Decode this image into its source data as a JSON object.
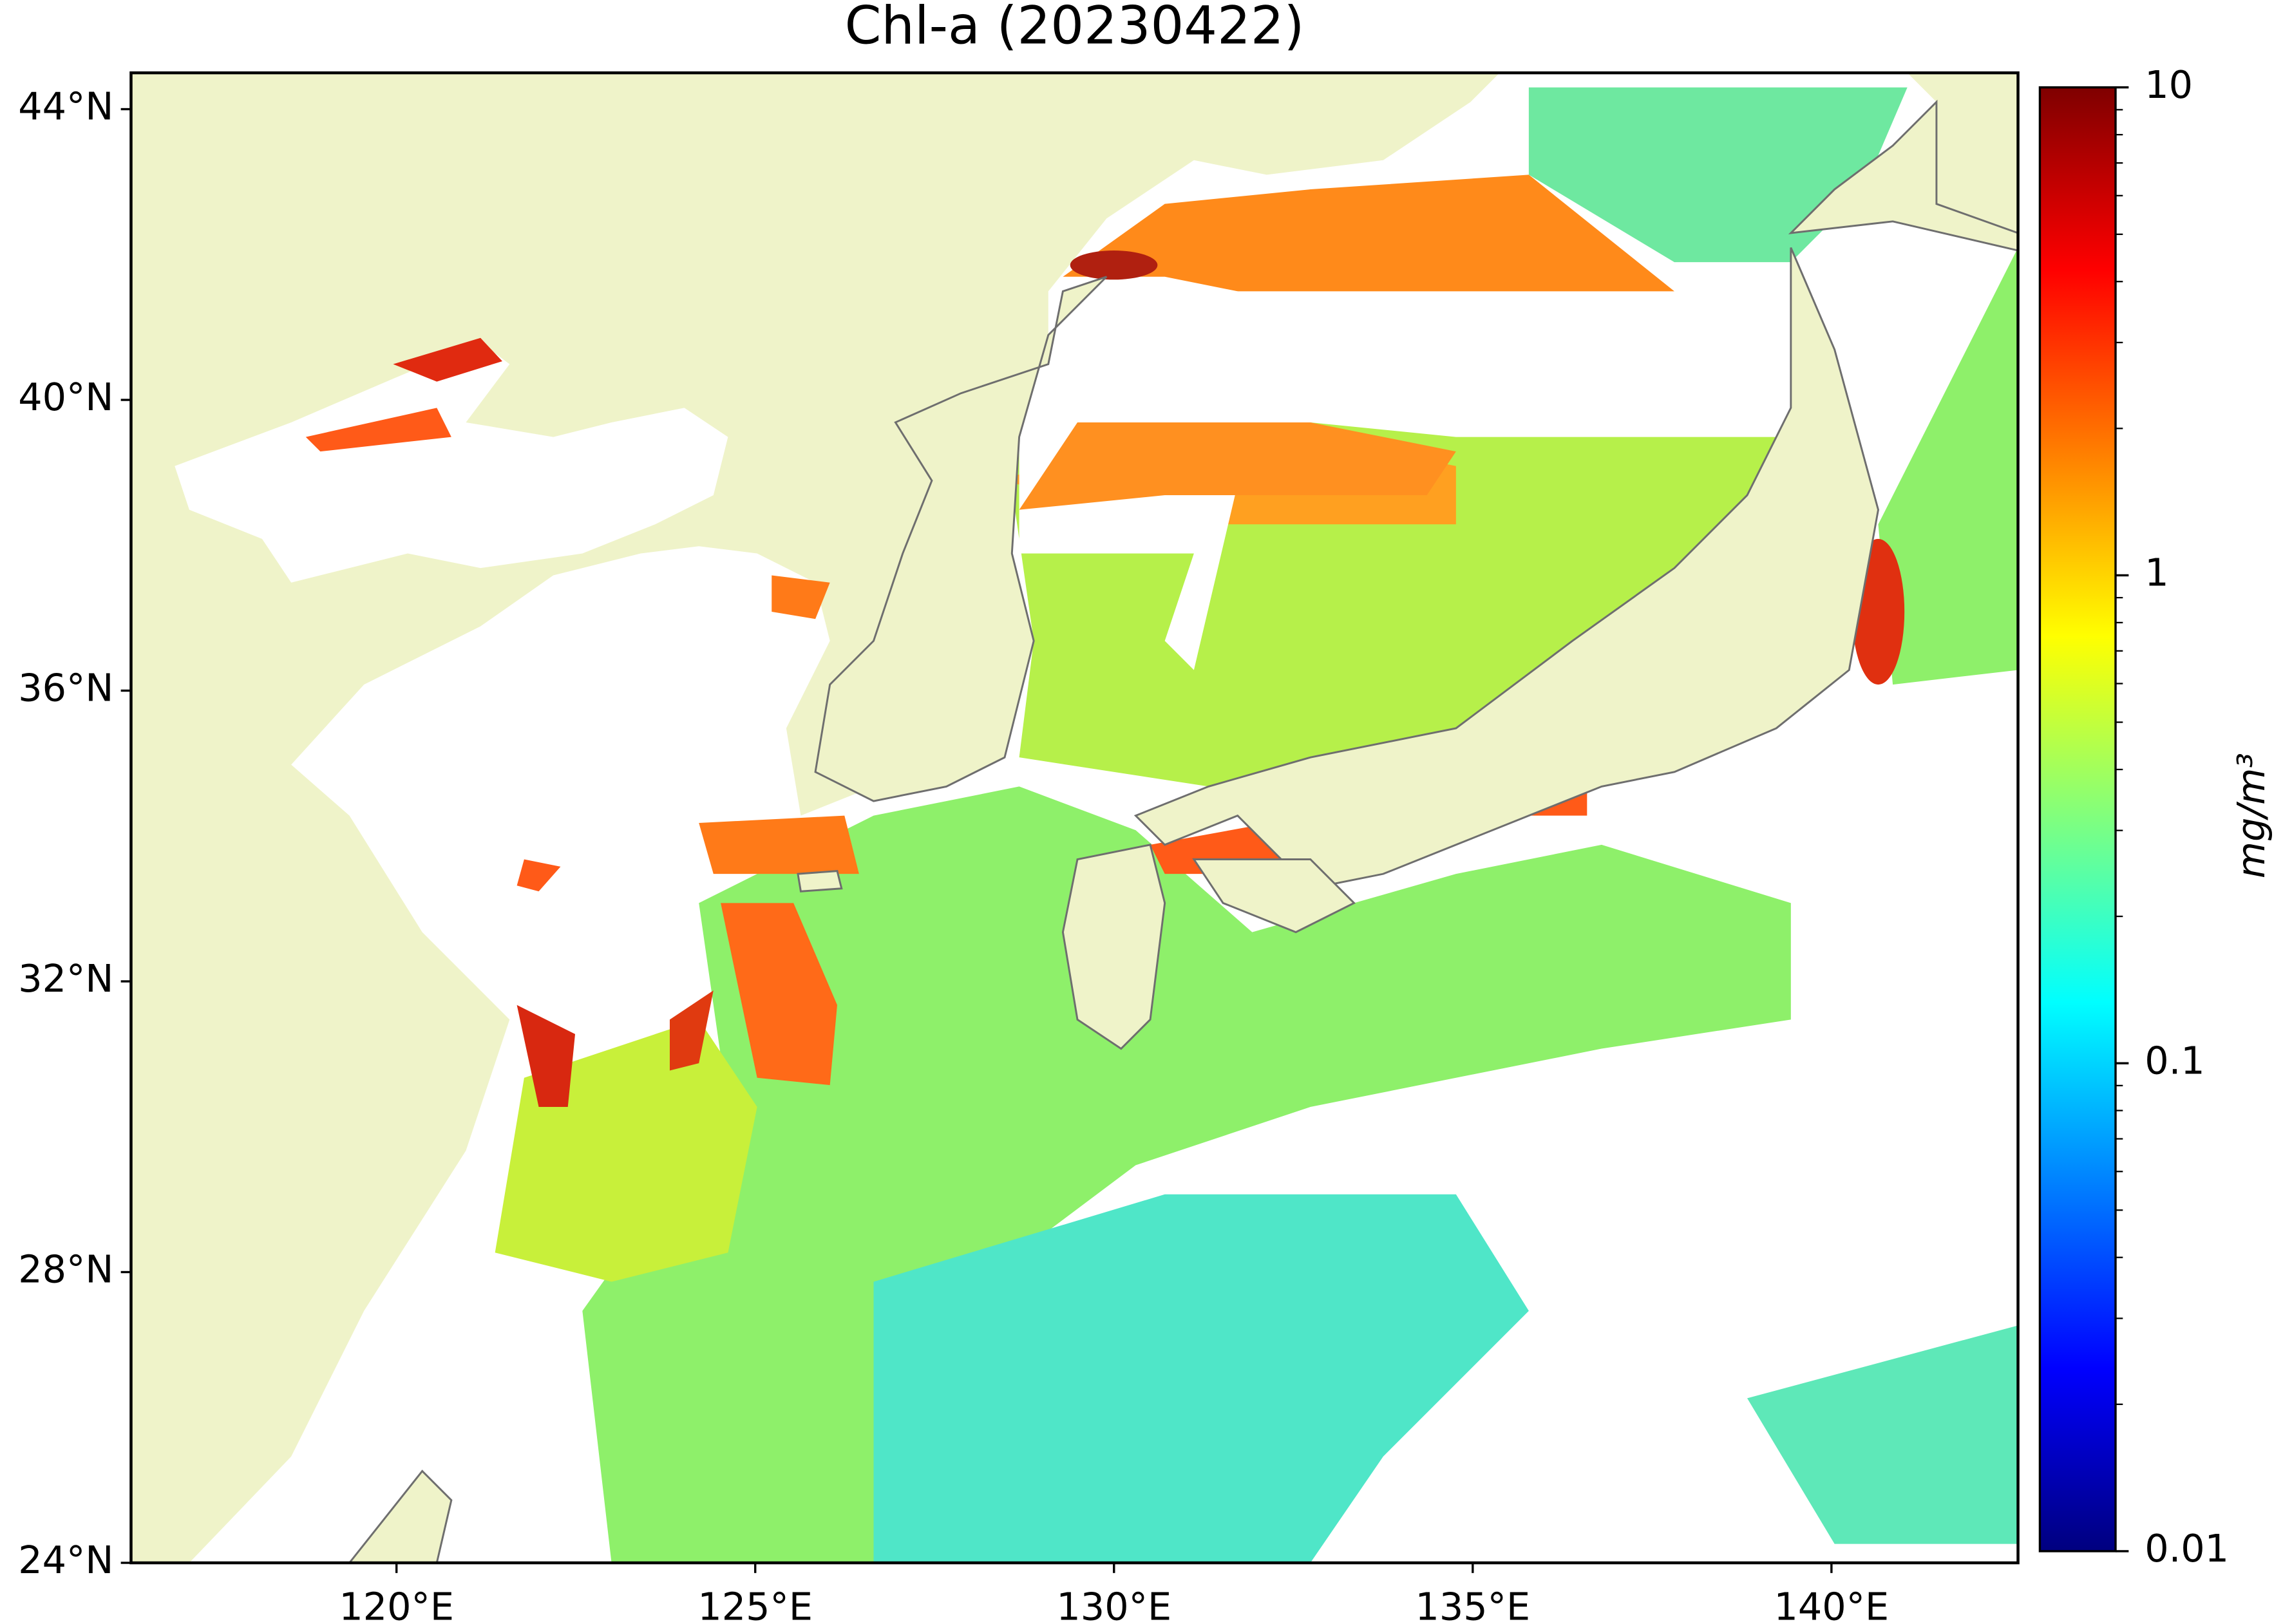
{
  "chart_data": {
    "type": "map",
    "title": "Chl-a (20230422)",
    "xlim": [
      116.3,
      142.6
    ],
    "ylim": [
      24,
      44.5
    ],
    "xticks": [
      {
        "value": 120,
        "label": "120°E"
      },
      {
        "value": 125,
        "label": "125°E"
      },
      {
        "value": 130,
        "label": "130°E"
      },
      {
        "value": 135,
        "label": "135°E"
      },
      {
        "value": 140,
        "label": "140°E"
      }
    ],
    "yticks": [
      {
        "value": 24,
        "label": "24°N"
      },
      {
        "value": 28,
        "label": "28°N"
      },
      {
        "value": 32,
        "label": "32°N"
      },
      {
        "value": 36,
        "label": "36°N"
      },
      {
        "value": 40,
        "label": "40°N"
      },
      {
        "value": 44,
        "label": "44°N"
      }
    ],
    "colorbar": {
      "label": "mg/m³",
      "scale": "log",
      "colormap": "jet",
      "lim": [
        0.01,
        10
      ],
      "ticks": [
        0.01,
        0.1,
        1,
        10
      ]
    }
  }
}
